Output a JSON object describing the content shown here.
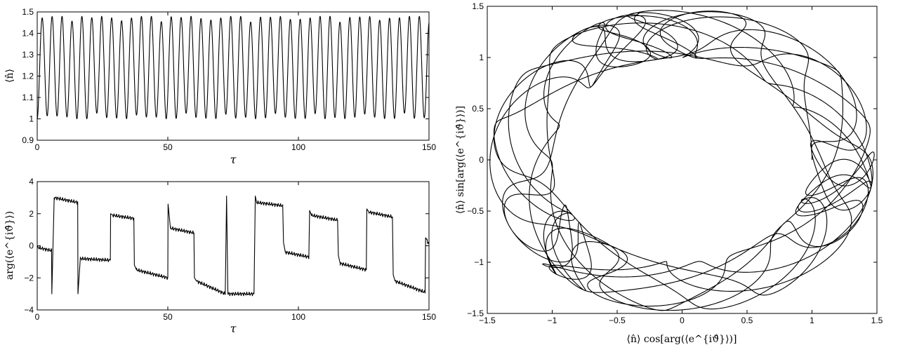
{
  "chart_data": [
    {
      "type": "line",
      "id": "top-left",
      "xlabel": "τ",
      "ylabel": "⟨n̂⟩",
      "xlim": [
        0,
        150
      ],
      "ylim": [
        0.9,
        1.5
      ],
      "xticks": [
        "0",
        "50",
        "100",
        "150"
      ],
      "yticks": [
        "0.9",
        "1",
        "1.1",
        "1.2",
        "1.3",
        "1.4",
        "1.5"
      ],
      "grid": false,
      "series": [
        {
          "kind": "oscillation",
          "period": 3.8,
          "min": 1.0,
          "max": 1.48,
          "t_start": 0,
          "t_end": 150
        }
      ]
    },
    {
      "type": "line",
      "id": "bottom-left",
      "xlabel": "τ",
      "ylabel": "arg(⟨e^{iϑ̂}⟩)",
      "xlim": [
        0,
        150
      ],
      "ylim": [
        -4,
        4
      ],
      "xticks": [
        "0",
        "50",
        "100",
        "150"
      ],
      "yticks": [
        "−4",
        "−2",
        "0",
        "2",
        "4"
      ],
      "grid": false,
      "series": [
        {
          "kind": "phase",
          "x": [
            0,
            5.5,
            5.6,
            6.5,
            15.5,
            15.6,
            16.5,
            28.0,
            28.1,
            29.0,
            37.0,
            37.2,
            38.0,
            50.0,
            50.1,
            51.0,
            60.0,
            60.2,
            61.0,
            72.0,
            72.5,
            73.0,
            83.0,
            83.5,
            84.0,
            94.0,
            94.3,
            95.0,
            104.0,
            104.3,
            105.0,
            115.0,
            115.3,
            116.0,
            126.0,
            126.2,
            127.0,
            136.0,
            136.3,
            137.0,
            148.5,
            148.7,
            150.0
          ],
          "y": [
            -0.1,
            -0.3,
            -3.0,
            3.0,
            2.7,
            -3.0,
            -0.8,
            -0.9,
            2.0,
            1.9,
            1.7,
            -1.2,
            -1.5,
            -2.0,
            2.6,
            1.1,
            0.8,
            -2.0,
            -2.2,
            -3.0,
            3.1,
            -3.0,
            -3.0,
            3.1,
            2.7,
            2.5,
            0.2,
            -0.4,
            -0.7,
            2.2,
            1.9,
            1.6,
            -0.6,
            -1.1,
            -1.5,
            2.3,
            2.1,
            1.8,
            -1.8,
            -2.2,
            -2.9,
            0.5,
            0.1
          ]
        }
      ]
    },
    {
      "type": "line",
      "id": "right",
      "xlabel": "⟨n̂⟩ cos[arg(⟨e^{iϑ̂}⟩)]",
      "ylabel": "⟨n̂⟩ sin[arg(⟨e^{iϑ̂}⟩)]",
      "xlim": [
        -1.5,
        1.5
      ],
      "ylim": [
        -1.5,
        1.5
      ],
      "xticks": [
        "−1.5",
        "−1",
        "−0.5",
        "0",
        "0.5",
        "1",
        "1.5"
      ],
      "yticks": [
        "−1.5",
        "−1",
        "−0.5",
        "0",
        "0.5",
        "1",
        "1.5"
      ],
      "grid": false,
      "series": [
        {
          "kind": "trajectory",
          "r_min": 1.0,
          "r_max": 1.48,
          "note_points": 0
        }
      ]
    }
  ]
}
